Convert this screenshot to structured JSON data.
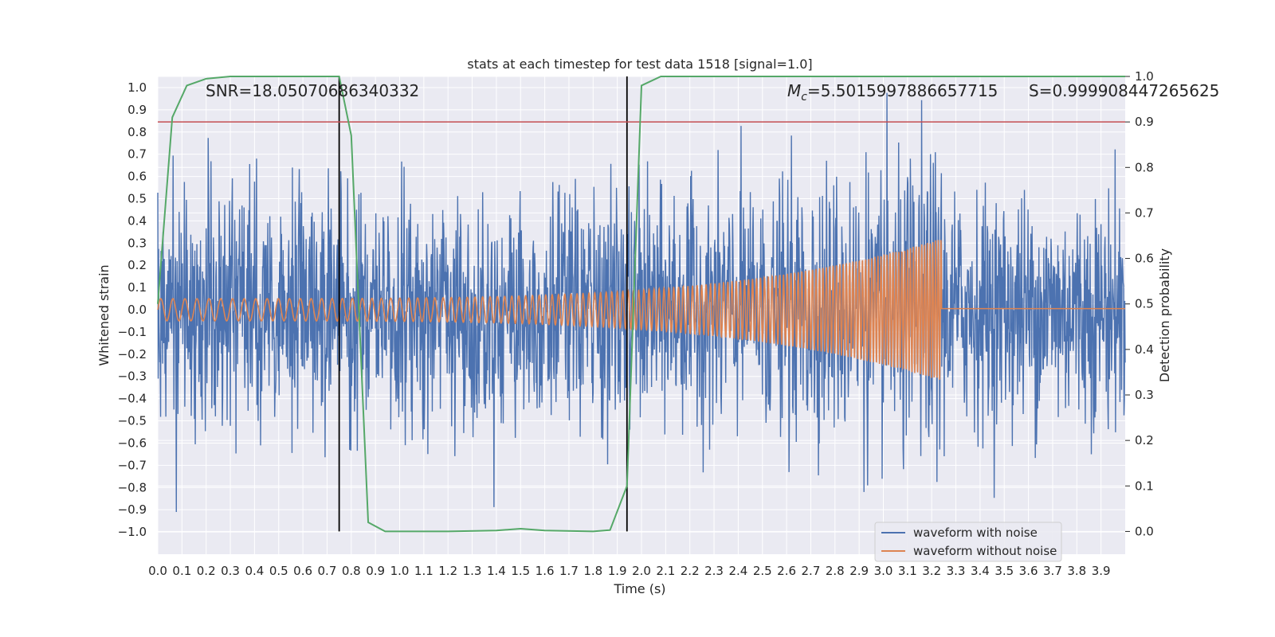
{
  "chart_data": {
    "type": "line",
    "title": "stats at each timestep for test data 1518 [signal=1.0]",
    "xlabel": "Time (s)",
    "ylabel": "Whitened strain",
    "y2label": "Detection probability",
    "xlim": [
      0.0,
      4.0
    ],
    "ylim": [
      -1.1,
      1.05
    ],
    "y2lim": [
      -0.05,
      1.0
    ],
    "x_ticks": [
      "0.0",
      "0.1",
      "0.2",
      "0.3",
      "0.4",
      "0.5",
      "0.6",
      "0.7",
      "0.8",
      "0.9",
      "1.0",
      "1.1",
      "1.2",
      "1.3",
      "1.4",
      "1.5",
      "1.6",
      "1.7",
      "1.8",
      "1.9",
      "2.0",
      "2.1",
      "2.2",
      "2.3",
      "2.4",
      "2.5",
      "2.6",
      "2.7",
      "2.8",
      "2.9",
      "3.0",
      "3.1",
      "3.2",
      "3.3",
      "3.4",
      "3.5",
      "3.6",
      "3.7",
      "3.8",
      "3.9"
    ],
    "y_ticks": [
      "1.0",
      "0.9",
      "0.8",
      "0.7",
      "0.6",
      "0.5",
      "0.4",
      "0.3",
      "0.2",
      "0.1",
      "0.0",
      "−0.1",
      "−0.2",
      "−0.3",
      "−0.4",
      "−0.5",
      "−0.6",
      "−0.7",
      "−0.8",
      "−0.9",
      "−1.0"
    ],
    "y2_ticks": [
      "1.0",
      "0.9",
      "0.8",
      "0.7",
      "0.6",
      "0.5",
      "0.4",
      "0.3",
      "0.2",
      "0.1",
      "0.0"
    ],
    "annotations": {
      "snr": "SNR=18.05070686340332",
      "mc_symbol": "M",
      "mc_sub": "c",
      "mc_value": "=5.5015997886657715",
      "s": "S=0.999908447265625"
    },
    "threshold": 0.9,
    "signal_markers": [
      0.75,
      1.94
    ],
    "noise_amplitude": 0.3,
    "chirp": {
      "start": 0.0,
      "merger": 3.24,
      "f0": 20,
      "f1": 90,
      "amp0": 0.05,
      "amp1": 0.32
    },
    "detection_probability": {
      "x": [
        0.0,
        0.06,
        0.12,
        0.2,
        0.3,
        0.5,
        0.75,
        0.8,
        0.87,
        0.94,
        1.0,
        1.2,
        1.4,
        1.5,
        1.6,
        1.8,
        1.87,
        1.94,
        2.0,
        2.08,
        2.4,
        3.0,
        3.5,
        4.0
      ],
      "y": [
        0.5,
        0.91,
        0.98,
        0.995,
        1.0,
        1.0,
        1.0,
        0.87,
        0.02,
        0.0,
        0.0,
        0.0,
        0.002,
        0.006,
        0.002,
        0.0,
        0.003,
        0.1,
        0.98,
        1.0,
        1.0,
        1.0,
        1.0,
        1.0
      ]
    },
    "legend": {
      "location": "lower-right",
      "entries": [
        "waveform with noise",
        "waveform without noise"
      ]
    },
    "colors": {
      "noise": "#4c72b0",
      "clean": "#dd8452",
      "probability": "#55a868",
      "threshold": "#c44e52",
      "marker": "#000000",
      "background": "#eaeaf2"
    }
  }
}
